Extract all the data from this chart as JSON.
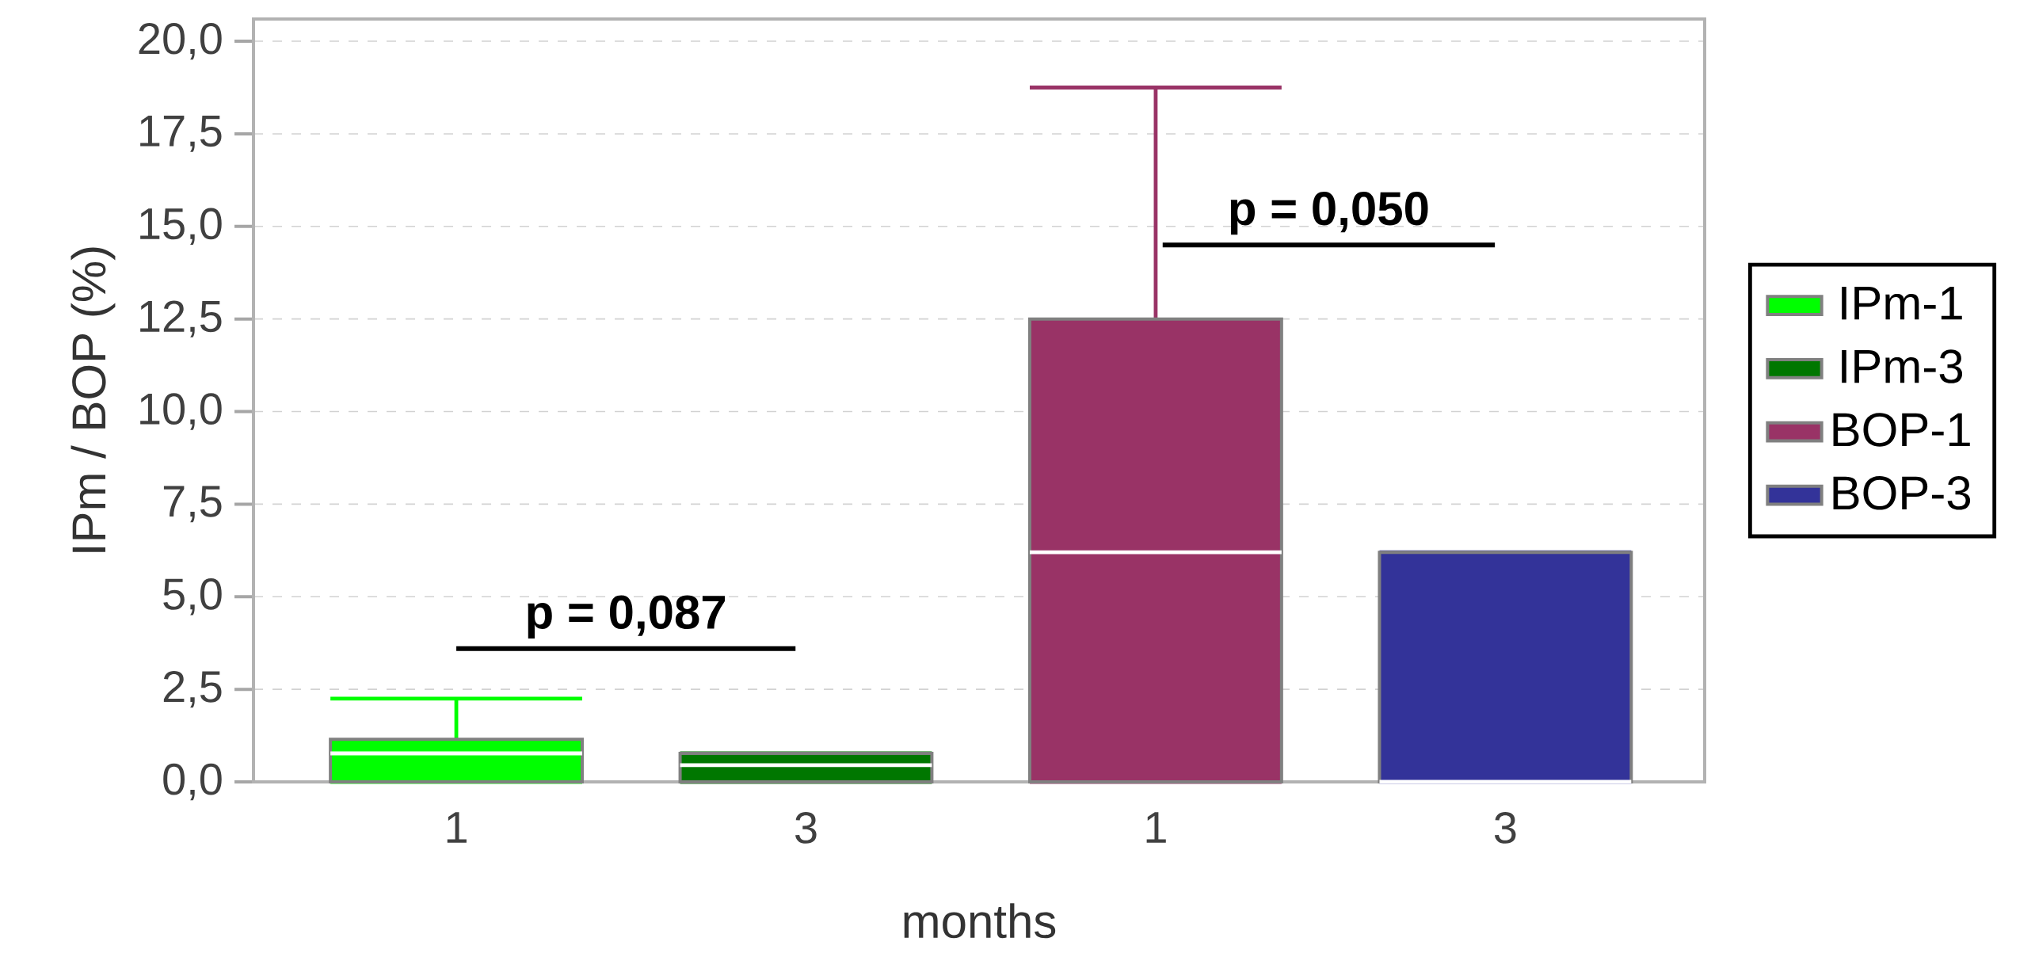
{
  "chart_data": {
    "type": "box",
    "xlabel": "months",
    "ylabel": "IPm / BOP (%)",
    "categories": [
      "1",
      "3",
      "1",
      "3"
    ],
    "series": [
      {
        "name": "IPm-1",
        "color": "#00ff00",
        "boxes": [
          {
            "low": 0,
            "q1": 0,
            "median": 0.77,
            "q3": 1.15,
            "high": 2.25
          },
          null,
          null,
          null
        ]
      },
      {
        "name": "IPm-3",
        "color": "#007700",
        "boxes": [
          null,
          {
            "low": 0,
            "q1": 0,
            "median": 0.45,
            "q3": 0.77,
            "high": 0.77
          },
          null,
          null
        ]
      },
      {
        "name": "BOP-1",
        "color": "#993366",
        "boxes": [
          null,
          null,
          {
            "low": 0,
            "q1": 0,
            "median": 6.2,
            "q3": 12.5,
            "high": 18.75
          },
          null
        ]
      },
      {
        "name": "BOP-3",
        "color": "#333399",
        "boxes": [
          null,
          null,
          null,
          {
            "low": 0,
            "q1": 0,
            "median": 0,
            "q3": 6.2,
            "high": 6.2
          }
        ]
      }
    ],
    "ylim": [
      0,
      20.6
    ],
    "yticks": [
      {
        "value": 0,
        "label": "0,0"
      },
      {
        "value": 2.5,
        "label": "2,5"
      },
      {
        "value": 5,
        "label": "5,0"
      },
      {
        "value": 7.5,
        "label": "7,5"
      },
      {
        "value": 10,
        "label": "10,0"
      },
      {
        "value": 12.5,
        "label": "12,5"
      },
      {
        "value": 15,
        "label": "15,0"
      },
      {
        "value": 17.5,
        "label": "17,5"
      },
      {
        "value": 20,
        "label": "20,0"
      }
    ],
    "grid": "y",
    "legend": "right",
    "annotations": [
      "p = 0,087",
      "p = 0,050"
    ]
  }
}
